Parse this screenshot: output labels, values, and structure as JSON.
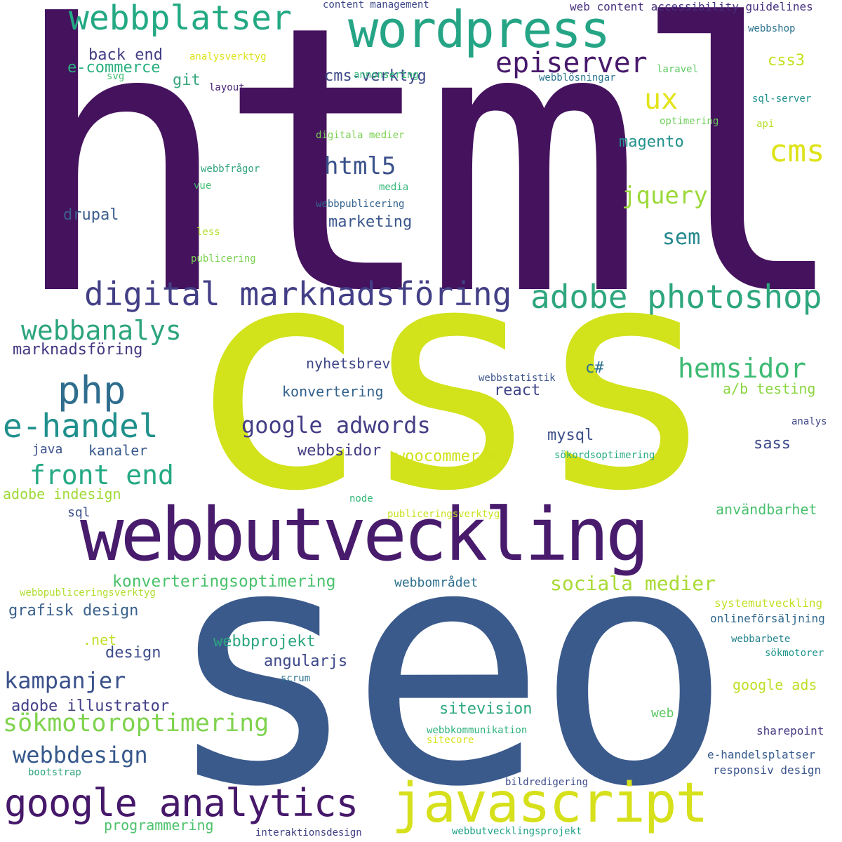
{
  "words": [
    {
      "text": "html",
      "color": "#45125e"
    },
    {
      "text": "css",
      "color": "#d2e21b"
    },
    {
      "text": "seo",
      "color": "#3b5a8c"
    },
    {
      "text": "webbutveckling",
      "color": "#481b6d"
    },
    {
      "text": "wordpress",
      "color": "#25a585"
    },
    {
      "text": "javascript",
      "color": "#d6e01b"
    },
    {
      "text": "webbplatser",
      "color": "#23a983"
    },
    {
      "text": "google analytics",
      "color": "#46186a"
    },
    {
      "text": "digital marknadsföring",
      "color": "#433f86"
    },
    {
      "text": "adobe photoshop",
      "color": "#2ea67e"
    },
    {
      "text": "php",
      "color": "#2f6d8e"
    },
    {
      "text": "e-handel",
      "color": "#20908c"
    },
    {
      "text": "episerver",
      "color": "#481a6c"
    },
    {
      "text": "webbanalys",
      "color": "#2ca47e"
    },
    {
      "text": "front end",
      "color": "#25a984"
    },
    {
      "text": "sökmotoroptimering",
      "color": "#7fd34e"
    },
    {
      "text": "cms",
      "color": "#dde318"
    },
    {
      "text": "hemsidor",
      "color": "#3dbb74"
    },
    {
      "text": "google adwords",
      "color": "#433e85"
    },
    {
      "text": "ux",
      "color": "#e2e418"
    },
    {
      "text": "html5",
      "color": "#3a518b"
    },
    {
      "text": "jquery",
      "color": "#9dd93b"
    },
    {
      "text": "webbdesign",
      "color": "#37598c"
    },
    {
      "text": "kampanjer",
      "color": "#3b518b"
    },
    {
      "text": "sociala medier",
      "color": "#a8db34"
    },
    {
      "text": "konverteringsoptimering",
      "color": "#4ac26d"
    },
    {
      "text": "sem",
      "color": "#26888e"
    },
    {
      "text": "programmering",
      "color": "#4cc26c"
    },
    {
      "text": "sitevision",
      "color": "#2ba97f"
    },
    {
      "text": "adobe illustrator",
      "color": "#433f87"
    },
    {
      "text": "webbprojekt",
      "color": "#2aa67f"
    },
    {
      "text": "grafisk design",
      "color": "#3a618c"
    },
    {
      "text": "design",
      "color": "#3e4c8a"
    },
    {
      "text": "angularjs",
      "color": "#3e4989"
    },
    {
      "text": "drupal",
      "color": "#3b5d8c"
    },
    {
      "text": "marketing",
      "color": "#39568c"
    },
    {
      "text": "cms-verktyg",
      "color": "#3e4b89"
    },
    {
      "text": "magento",
      "color": "#22918c"
    },
    {
      "text": "back end",
      "color": "#433e85"
    },
    {
      "text": "e-commerce",
      "color": "#2ab07f"
    },
    {
      "text": "git",
      "color": "#36a77c"
    },
    {
      "text": "css3",
      "color": "#c5e021"
    },
    {
      "text": "marknadsföring",
      "color": "#453781"
    },
    {
      "text": "nyhetsbrev",
      "color": "#3f4788"
    },
    {
      "text": "konvertering",
      "color": "#33628d"
    },
    {
      "text": "react",
      "color": "#404588"
    },
    {
      "text": "c#",
      "color": "#2d718e"
    },
    {
      "text": "a/b testing",
      "color": "#8cd644"
    },
    {
      "text": "mysql",
      "color": "#3c4f8a"
    },
    {
      "text": "webbsidor",
      "color": "#433e85"
    },
    {
      "text": "woocommerce",
      "color": "#d0e11c"
    },
    {
      "text": "sass",
      "color": "#3e4a89"
    },
    {
      "text": "kanaler",
      "color": "#38598c"
    },
    {
      "text": "java",
      "color": "#3b528b"
    },
    {
      "text": "adobe indesign",
      "color": "#a0da39"
    },
    {
      "text": "sql",
      "color": "#3d4e8a"
    },
    {
      "text": "användbarhet",
      "color": "#48c16e"
    },
    {
      "text": "webbområdet",
      "color": "#2d708e"
    },
    {
      "text": ".net",
      "color": "#c0df25"
    },
    {
      "text": "google ads",
      "color": "#bddf26"
    },
    {
      "text": "web",
      "color": "#5cc863"
    },
    {
      "text": "analysverktyg",
      "color": "#dce319"
    },
    {
      "text": "content management",
      "color": "#3f4889"
    },
    {
      "text": "web content accessibility guidelines",
      "color": "#46307e"
    },
    {
      "text": "webbshop",
      "color": "#2c738e"
    },
    {
      "text": "annonsering",
      "color": "#35b779"
    },
    {
      "text": "svg",
      "color": "#40bd72"
    },
    {
      "text": "layout",
      "color": "#482576"
    },
    {
      "text": "laravel",
      "color": "#5ec962"
    },
    {
      "text": "webblösningar",
      "color": "#2a768e"
    },
    {
      "text": "sql-server",
      "color": "#21918c"
    },
    {
      "text": "optimering",
      "color": "#6ccd5a"
    },
    {
      "text": "api",
      "color": "#b8de29"
    },
    {
      "text": "digitala medier",
      "color": "#7ad151"
    },
    {
      "text": "webbfrågor",
      "color": "#2ea37e"
    },
    {
      "text": "vue",
      "color": "#42be71"
    },
    {
      "text": "media",
      "color": "#35b779"
    },
    {
      "text": "webbpublicering",
      "color": "#33638d"
    },
    {
      "text": "less",
      "color": "#b5de2b"
    },
    {
      "text": "publicering",
      "color": "#7ad151"
    },
    {
      "text": "webbstatistik",
      "color": "#3a538b"
    },
    {
      "text": "analys",
      "color": "#3f4788"
    },
    {
      "text": "sökordsoptimering",
      "color": "#27ad81"
    },
    {
      "text": "node",
      "color": "#35b779"
    },
    {
      "text": "publiceringsverktyg",
      "color": "#cae11f"
    },
    {
      "text": "webbpubliceringsverktyg",
      "color": "#b0dd2f"
    },
    {
      "text": "systemutveckling",
      "color": "#c2df23"
    },
    {
      "text": "onlineförsäljning",
      "color": "#31688e"
    },
    {
      "text": "webbarbete",
      "color": "#25848e"
    },
    {
      "text": "sökmotorer",
      "color": "#1f958b"
    },
    {
      "text": "scrum",
      "color": "#2c728e"
    },
    {
      "text": "webbkommunikation",
      "color": "#2db27d"
    },
    {
      "text": "sitecore",
      "color": "#d8e219"
    },
    {
      "text": "sharepoint",
      "color": "#443a83"
    },
    {
      "text": "e-handelsplatser",
      "color": "#375b8d"
    },
    {
      "text": "responsiv design",
      "color": "#3a548c"
    },
    {
      "text": "bootstrap",
      "color": "#2ea37e"
    },
    {
      "text": "bildredigering",
      "color": "#3e4a89"
    },
    {
      "text": "interaktionsdesign",
      "color": "#424086"
    },
    {
      "text": "webbutvecklingsprojekt",
      "color": "#1fa187"
    }
  ]
}
